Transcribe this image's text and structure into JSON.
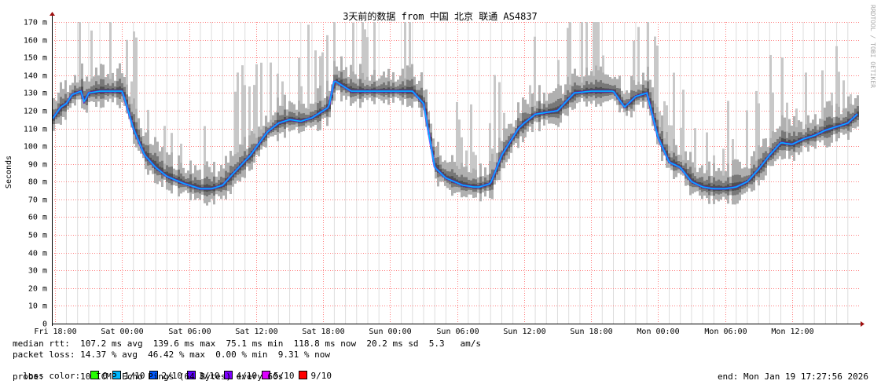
{
  "chart_data": {
    "type": "line",
    "title": "3天前的数据 from 中国 北京 联通 AS4837",
    "ylabel": "Seconds",
    "watermark": "RRDTOOL / TOBI OETIKER",
    "ylim": [
      0,
      170
    ],
    "y_ticks": [
      "0",
      "10 m",
      "20 m",
      "30 m",
      "40 m",
      "50 m",
      "60 m",
      "70 m",
      "80 m",
      "90 m",
      "100 m",
      "110 m",
      "120 m",
      "130 m",
      "140 m",
      "150 m",
      "160 m",
      "170 m"
    ],
    "x_ticks": [
      "Fri 18:00",
      "Sat 00:00",
      "Sat 06:00",
      "Sat 12:00",
      "Sat 18:00",
      "Sun 00:00",
      "Sun 06:00",
      "Sun 12:00",
      "Sun 18:00",
      "Mon 00:00",
      "Mon 06:00",
      "Mon 12:00"
    ],
    "x_range_hours": [
      -0.3,
      72.0
    ],
    "series": [
      {
        "x": [
          -0.3,
          0.5,
          1.0,
          1.5,
          2.3,
          2.6,
          3.0,
          4.0,
          6.0,
          6.3,
          7.0,
          8.0,
          9.0,
          10.0,
          11.5,
          13.0,
          14.0,
          15.0,
          16.0,
          17.5,
          19.0,
          20.0,
          21.0,
          22.0,
          23.0,
          24.0,
          24.5,
          25.0,
          26.5,
          27.5,
          28.5,
          30.0,
          31.0,
          32.0,
          33.0,
          34.0,
          35.0,
          36.5,
          37.5,
          38.0,
          39.0,
          40.0,
          41.0,
          41.5,
          42.0,
          43.0,
          44.0,
          45.0,
          46.5,
          48.0,
          49.0,
          50.0,
          51.0,
          52.0,
          53.0,
          54.0,
          55.0,
          56.0,
          56.5,
          57.0,
          58.0,
          59.0,
          60.0,
          61.0,
          62.0,
          63.0,
          64.0,
          65.0,
          66.0,
          67.0,
          68.0,
          69.0,
          70.0,
          71.0,
          72.0
        ],
        "y": [
          115,
          122,
          124,
          129,
          131,
          125,
          130,
          131,
          131,
          125,
          110,
          95,
          88,
          83,
          79,
          76,
          76,
          78,
          85,
          95,
          108,
          113,
          115,
          114,
          116,
          120,
          122,
          137,
          131,
          131,
          131,
          131,
          131,
          131,
          124,
          88,
          82,
          78,
          77,
          77,
          79,
          95,
          105,
          110,
          113,
          118,
          119,
          120,
          130,
          131,
          131,
          131,
          122,
          128,
          130,
          105,
          91,
          88,
          84,
          80,
          77,
          76,
          76,
          77,
          80,
          87,
          95,
          102,
          101,
          104,
          106,
          109,
          111,
          113,
          119
        ]
      }
    ]
  },
  "footer": {
    "median_rtt": "median rtt:  107.2 ms avg  139.6 ms max  75.1 ms min  118.8 ms now  20.2 ms sd  5.3   am/s",
    "packet_loss": "packet loss: 14.37 % avg  46.42 % max  0.00 % min  9.31 % now",
    "loss_color_label": "loss color:",
    "loss_colors": [
      {
        "label": "0",
        "color": "#26ff00"
      },
      {
        "label": "1/10",
        "color": "#00b8ff"
      },
      {
        "label": "2/10",
        "color": "#0059ff"
      },
      {
        "label": "3/10",
        "color": "#5e00ff"
      },
      {
        "label": "4/10",
        "color": "#7e00ff"
      },
      {
        "label": "5/10",
        "color": "#dd00ff"
      },
      {
        "label": "9/10",
        "color": "#ff0000"
      }
    ],
    "probe": "probe:       10 ICMP Echo Pings (64 Bytes) every 60s",
    "end": "end: Mon Jan 19 17:27:56 2026"
  },
  "colors": {
    "grid_major": "#ff8080",
    "grid_minor": "#dddddd",
    "axis": "#000000",
    "arrow": "#a01010",
    "smoke_light": "#c8c8c8",
    "smoke_dark": "#505050",
    "median": "#00b8ff"
  }
}
